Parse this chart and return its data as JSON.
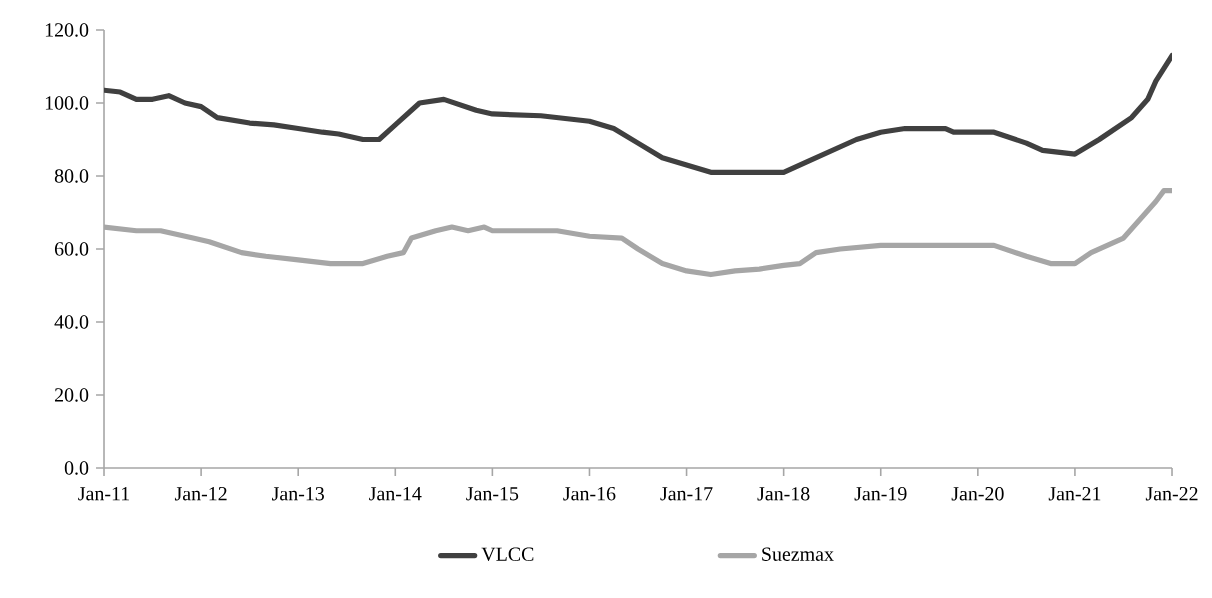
{
  "chart_data": {
    "type": "line",
    "ylim": [
      0,
      120
    ],
    "xlim": [
      "2011-01",
      "2022-01"
    ],
    "yticks": [
      {
        "value": 0,
        "label": "0.0"
      },
      {
        "value": 20,
        "label": "20.0"
      },
      {
        "value": 40,
        "label": "40.0"
      },
      {
        "value": 60,
        "label": "60.0"
      },
      {
        "value": 80,
        "label": "80.0"
      },
      {
        "value": 100,
        "label": "100.0"
      },
      {
        "value": 120,
        "label": "120.0"
      }
    ],
    "xticks": [
      {
        "value": "2011-01",
        "label": "Jan-11"
      },
      {
        "value": "2012-01",
        "label": "Jan-12"
      },
      {
        "value": "2013-01",
        "label": "Jan-13"
      },
      {
        "value": "2014-01",
        "label": "Jan-14"
      },
      {
        "value": "2015-01",
        "label": "Jan-15"
      },
      {
        "value": "2016-01",
        "label": "Jan-16"
      },
      {
        "value": "2017-01",
        "label": "Jan-17"
      },
      {
        "value": "2018-01",
        "label": "Jan-18"
      },
      {
        "value": "2019-01",
        "label": "Jan-19"
      },
      {
        "value": "2020-01",
        "label": "Jan-20"
      },
      {
        "value": "2021-01",
        "label": "Jan-21"
      },
      {
        "value": "2022-01",
        "label": "Jan-22"
      }
    ],
    "legend": "bottom",
    "grid": false,
    "marker": "none",
    "line_style": "solid",
    "series": [
      {
        "name": "VLCC",
        "color": "#404040",
        "x": [
          "2011-01",
          "2011-03",
          "2011-05",
          "2011-07",
          "2011-09",
          "2011-11",
          "2012-01",
          "2012-03",
          "2012-07",
          "2012-10",
          "2013-01",
          "2013-04",
          "2013-06",
          "2013-09",
          "2013-11",
          "2014-01",
          "2014-04",
          "2014-07",
          "2014-11",
          "2015-01",
          "2015-07",
          "2016-01",
          "2016-04",
          "2016-07",
          "2016-10",
          "2017-01",
          "2017-04",
          "2018-01",
          "2018-04",
          "2018-07",
          "2018-10",
          "2019-01",
          "2019-04",
          "2019-09",
          "2019-10",
          "2020-03",
          "2020-07",
          "2020-09",
          "2021-01",
          "2021-04",
          "2021-08",
          "2021-10",
          "2021-11",
          "2022-01"
        ],
        "values": [
          103.5,
          103,
          101,
          101,
          102,
          100,
          99,
          96,
          94.5,
          94,
          93,
          92,
          91.5,
          90,
          90,
          94,
          100,
          101,
          98,
          97,
          96.5,
          95,
          93,
          89,
          85,
          83,
          81,
          81,
          84,
          87,
          90,
          92,
          93,
          93,
          92,
          92,
          89,
          87,
          86,
          90,
          96,
          101,
          106,
          113
        ]
      },
      {
        "name": "Suezmax",
        "color": "#a6a6a6",
        "x": [
          "2011-01",
          "2011-05",
          "2011-08",
          "2011-12",
          "2012-02",
          "2012-06",
          "2012-09",
          "2013-01",
          "2013-05",
          "2013-09",
          "2013-12",
          "2014-02",
          "2014-03",
          "2014-06",
          "2014-08",
          "2014-10",
          "2014-12",
          "2015-01",
          "2015-09",
          "2016-01",
          "2016-05",
          "2016-07",
          "2016-10",
          "2017-01",
          "2017-04",
          "2017-07",
          "2017-10",
          "2018-01",
          "2018-03",
          "2018-05",
          "2018-08",
          "2019-01",
          "2020-03",
          "2020-07",
          "2020-10",
          "2021-01",
          "2021-03",
          "2021-07",
          "2021-09",
          "2021-11",
          "2021-12",
          "2022-01"
        ],
        "values": [
          66,
          65,
          65,
          63,
          62,
          59,
          58,
          57,
          56,
          56,
          58,
          59,
          63,
          65,
          66,
          65,
          66,
          65,
          65,
          63.5,
          63,
          60,
          56,
          54,
          53,
          54,
          54.5,
          55.5,
          56,
          59,
          60,
          61,
          61,
          58,
          56,
          56,
          59,
          63,
          68,
          73,
          76,
          76
        ]
      }
    ]
  }
}
